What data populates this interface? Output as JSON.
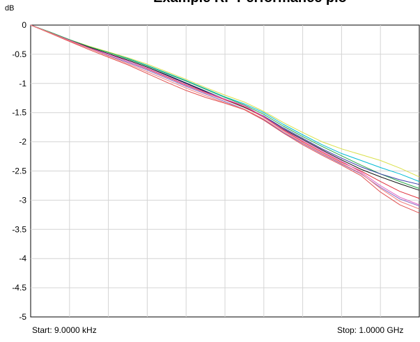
{
  "chart_data": {
    "type": "line",
    "title": "Example RF Performance plo",
    "ylabel": "dB",
    "ylim": [
      -5,
      0
    ],
    "yticks": [
      "0",
      "-0.5",
      "-1",
      "-1.5",
      "-2",
      "-2.5",
      "-3",
      "-3.5",
      "-4",
      "-4.5",
      "-5"
    ],
    "ytick_values": [
      0,
      -0.5,
      -1,
      -1.5,
      -2,
      -2.5,
      -3,
      -3.5,
      -4,
      -4.5,
      -5
    ],
    "x_start_label": "Start: 9.0000 kHz",
    "x_stop_label": "Stop: 1.0000 GHz",
    "x_divisions": 10,
    "grid": true,
    "x": [
      0,
      0.05,
      0.1,
      0.15,
      0.2,
      0.25,
      0.3,
      0.35,
      0.4,
      0.45,
      0.5,
      0.55,
      0.6,
      0.65,
      0.7,
      0.75,
      0.8,
      0.85,
      0.9,
      0.95,
      1.0
    ],
    "series": [
      {
        "color": "#d9e04a",
        "values": [
          0,
          -0.12,
          -0.25,
          -0.36,
          -0.46,
          -0.56,
          -0.67,
          -0.8,
          -0.93,
          -1.07,
          -1.2,
          -1.32,
          -1.48,
          -1.67,
          -1.84,
          -2.0,
          -2.12,
          -2.22,
          -2.32,
          -2.45,
          -2.6
        ]
      },
      {
        "color": "#00bcd4",
        "values": [
          0,
          -0.12,
          -0.25,
          -0.37,
          -0.47,
          -0.57,
          -0.69,
          -0.82,
          -0.95,
          -1.09,
          -1.23,
          -1.35,
          -1.5,
          -1.7,
          -1.88,
          -2.05,
          -2.2,
          -2.32,
          -2.44,
          -2.55,
          -2.68
        ]
      },
      {
        "color": "#2aa84a",
        "values": [
          0,
          -0.12,
          -0.25,
          -0.37,
          -0.47,
          -0.58,
          -0.7,
          -0.83,
          -0.96,
          -1.1,
          -1.24,
          -1.37,
          -1.53,
          -1.73,
          -1.91,
          -2.08,
          -2.24,
          -2.4,
          -2.55,
          -2.68,
          -2.8
        ]
      },
      {
        "color": "#3a3aa8",
        "values": [
          0,
          -0.13,
          -0.26,
          -0.38,
          -0.49,
          -0.6,
          -0.72,
          -0.85,
          -0.99,
          -1.13,
          -1.27,
          -1.4,
          -1.56,
          -1.76,
          -1.94,
          -2.12,
          -2.28,
          -2.43,
          -2.55,
          -2.65,
          -2.73
        ]
      },
      {
        "color": "#111111",
        "values": [
          0,
          -0.13,
          -0.26,
          -0.38,
          -0.49,
          -0.6,
          -0.72,
          -0.86,
          -1.0,
          -1.14,
          -1.28,
          -1.41,
          -1.57,
          -1.78,
          -1.96,
          -2.14,
          -2.31,
          -2.47,
          -2.6,
          -2.72,
          -2.83
        ]
      },
      {
        "color": "#e0303a",
        "values": [
          0,
          -0.13,
          -0.26,
          -0.39,
          -0.5,
          -0.62,
          -0.75,
          -0.89,
          -1.03,
          -1.16,
          -1.28,
          -1.4,
          -1.58,
          -1.8,
          -2.0,
          -2.18,
          -2.35,
          -2.5,
          -2.68,
          -2.85,
          -2.97
        ]
      },
      {
        "color": "#e060c0",
        "values": [
          0,
          -0.13,
          -0.26,
          -0.39,
          -0.5,
          -0.62,
          -0.74,
          -0.88,
          -1.02,
          -1.15,
          -1.27,
          -1.38,
          -1.57,
          -1.79,
          -1.98,
          -2.16,
          -2.33,
          -2.52,
          -2.75,
          -2.95,
          -3.08
        ]
      },
      {
        "color": "#8060c0",
        "values": [
          0,
          -0.13,
          -0.27,
          -0.4,
          -0.52,
          -0.64,
          -0.77,
          -0.91,
          -1.05,
          -1.18,
          -1.31,
          -1.44,
          -1.62,
          -1.84,
          -2.03,
          -2.21,
          -2.38,
          -2.55,
          -2.78,
          -2.98,
          -3.1
        ]
      },
      {
        "color": "#e05050",
        "values": [
          0,
          -0.14,
          -0.28,
          -0.42,
          -0.55,
          -0.68,
          -0.83,
          -0.98,
          -1.12,
          -1.24,
          -1.34,
          -1.45,
          -1.63,
          -1.85,
          -2.05,
          -2.23,
          -2.4,
          -2.58,
          -2.86,
          -3.08,
          -3.22
        ]
      },
      {
        "color": "#f08080",
        "values": [
          0,
          -0.13,
          -0.27,
          -0.4,
          -0.53,
          -0.66,
          -0.8,
          -0.94,
          -1.08,
          -1.21,
          -1.33,
          -1.44,
          -1.61,
          -1.82,
          -2.02,
          -2.2,
          -2.37,
          -2.54,
          -2.8,
          -3.02,
          -3.15
        ]
      }
    ]
  }
}
